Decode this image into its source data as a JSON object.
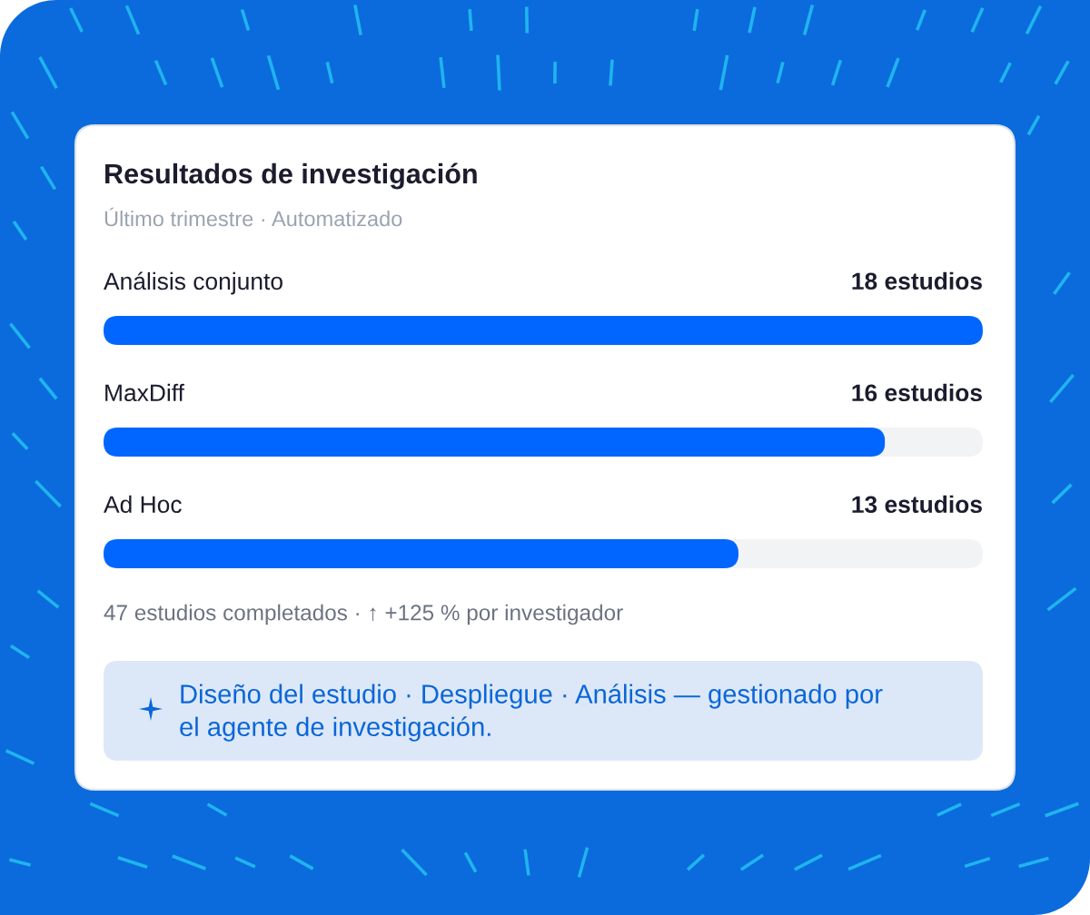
{
  "chart_data": {
    "type": "bar",
    "orientation": "horizontal",
    "title": "Resultados de investigación",
    "subtitle": "Último trimestre · Automatizado",
    "categories": [
      "Análisis conjunto",
      "MaxDiff",
      "Ad Hoc"
    ],
    "values": [
      18,
      16,
      13
    ],
    "value_labels": [
      "18 estudios",
      "16 estudios",
      "13 estudios"
    ],
    "color": "#0066ff",
    "xlim": [
      0,
      18
    ],
    "annotations": [
      "47 estudios completados · ↑ +125 % por investigador",
      "Diseño del estudio · Despliegue · Análisis — gestionado por el agente de investigación."
    ]
  }
}
